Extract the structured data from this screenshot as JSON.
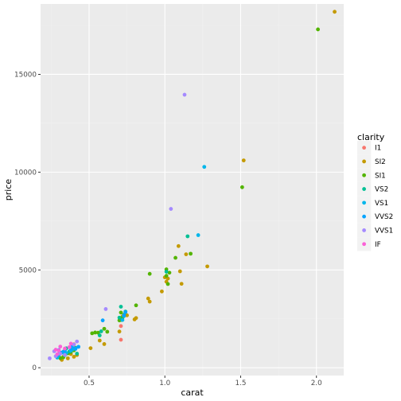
{
  "chart_data": {
    "type": "scatter",
    "xlabel": "carat",
    "ylabel": "price",
    "xlim": [
      0.18,
      2.18
    ],
    "ylim": [
      -400,
      18600
    ],
    "x_ticks": [
      0.5,
      1.0,
      1.5,
      2.0
    ],
    "x_tick_labels": [
      "0.5",
      "1.0",
      "1.5",
      "2.0"
    ],
    "y_ticks": [
      0,
      5000,
      10000,
      15000
    ],
    "y_tick_labels": [
      "0",
      "5000",
      "10000",
      "15000"
    ],
    "grid": true,
    "panel_background": "#ebebeb",
    "legend": {
      "title": "clarity",
      "placement": "right"
    },
    "series": [
      {
        "name": "I1",
        "color": "#F8766D",
        "points": [
          [
            0.71,
            1430
          ],
          [
            0.4,
            1200
          ],
          [
            0.39,
            1050
          ],
          [
            0.71,
            2130
          ]
        ]
      },
      {
        "name": "SI2",
        "color": "#C49A00",
        "points": [
          [
            2.12,
            18200
          ],
          [
            1.52,
            10600
          ],
          [
            1.28,
            5180
          ],
          [
            1.14,
            5800
          ],
          [
            1.1,
            4930
          ],
          [
            1.09,
            6220
          ],
          [
            1.11,
            4290
          ],
          [
            1.02,
            4560
          ],
          [
            1.01,
            4400
          ],
          [
            1.0,
            4620
          ],
          [
            0.98,
            3900
          ],
          [
            0.9,
            3380
          ],
          [
            0.89,
            3540
          ],
          [
            0.81,
            2540
          ],
          [
            0.8,
            2470
          ],
          [
            0.75,
            2680
          ],
          [
            0.72,
            2620
          ],
          [
            0.7,
            1850
          ],
          [
            0.6,
            1210
          ],
          [
            0.57,
            1390
          ],
          [
            0.51,
            1000
          ],
          [
            0.42,
            650
          ],
          [
            0.4,
            560
          ],
          [
            0.38,
            700
          ],
          [
            0.36,
            480
          ],
          [
            0.33,
            560
          ],
          [
            0.32,
            400
          ]
        ]
      },
      {
        "name": "SI1",
        "color": "#53B400",
        "points": [
          [
            2.01,
            17300
          ],
          [
            1.51,
            9230
          ],
          [
            1.17,
            5830
          ],
          [
            1.07,
            5620
          ],
          [
            1.03,
            4860
          ],
          [
            1.02,
            4280
          ],
          [
            1.01,
            4700
          ],
          [
            1.01,
            5030
          ],
          [
            0.9,
            4800
          ],
          [
            0.81,
            3190
          ],
          [
            0.73,
            2710
          ],
          [
            0.72,
            2550
          ],
          [
            0.71,
            2820
          ],
          [
            0.71,
            2440
          ],
          [
            0.7,
            2420
          ],
          [
            0.62,
            1840
          ],
          [
            0.6,
            1990
          ],
          [
            0.56,
            1790
          ],
          [
            0.54,
            1800
          ],
          [
            0.52,
            1760
          ],
          [
            0.41,
            1020
          ],
          [
            0.4,
            890
          ],
          [
            0.38,
            800
          ],
          [
            0.36,
            730
          ],
          [
            0.34,
            650
          ],
          [
            0.33,
            530
          ],
          [
            0.31,
            490
          ],
          [
            0.3,
            600
          ]
        ]
      },
      {
        "name": "VS2",
        "color": "#00C094",
        "points": [
          [
            1.15,
            6720
          ],
          [
            1.01,
            4910
          ],
          [
            0.74,
            2870
          ],
          [
            0.71,
            3120
          ],
          [
            0.7,
            2560
          ],
          [
            0.58,
            1860
          ],
          [
            0.57,
            1650
          ],
          [
            0.42,
            720
          ],
          [
            0.37,
            830
          ],
          [
            0.35,
            990
          ],
          [
            0.34,
            640
          ],
          [
            0.3,
            700
          ]
        ]
      },
      {
        "name": "VS1",
        "color": "#00B6EB",
        "points": [
          [
            1.26,
            10270
          ],
          [
            1.22,
            6780
          ],
          [
            0.73,
            2640
          ],
          [
            0.72,
            2440
          ],
          [
            0.41,
            990
          ],
          [
            0.39,
            940
          ],
          [
            0.38,
            870
          ],
          [
            0.35,
            750
          ],
          [
            0.33,
            820
          ],
          [
            0.31,
            760
          ],
          [
            0.3,
            640
          ],
          [
            0.29,
            520
          ]
        ]
      },
      {
        "name": "VVS2",
        "color": "#06A4FF",
        "points": [
          [
            0.74,
            2840
          ],
          [
            0.73,
            2680
          ],
          [
            0.59,
            2420
          ],
          [
            0.43,
            1070
          ],
          [
            0.41,
            960
          ],
          [
            0.39,
            1100
          ],
          [
            0.38,
            980
          ],
          [
            0.34,
            880
          ],
          [
            0.32,
            770
          ],
          [
            0.3,
            900
          ]
        ]
      },
      {
        "name": "VVS1",
        "color": "#A58AFF",
        "points": [
          [
            1.13,
            13960
          ],
          [
            1.04,
            8120
          ],
          [
            0.61,
            3000
          ],
          [
            0.42,
            1340
          ],
          [
            0.4,
            1180
          ],
          [
            0.34,
            650
          ],
          [
            0.31,
            720
          ],
          [
            0.28,
            590
          ],
          [
            0.27,
            840
          ],
          [
            0.24,
            480
          ]
        ]
      },
      {
        "name": "IF",
        "color": "#FB61D7",
        "points": [
          [
            0.38,
            1230
          ],
          [
            0.37,
            1050
          ],
          [
            0.34,
            980
          ],
          [
            0.31,
            1080
          ],
          [
            0.3,
            880
          ],
          [
            0.29,
            690
          ],
          [
            0.28,
            920
          ]
        ]
      }
    ]
  }
}
